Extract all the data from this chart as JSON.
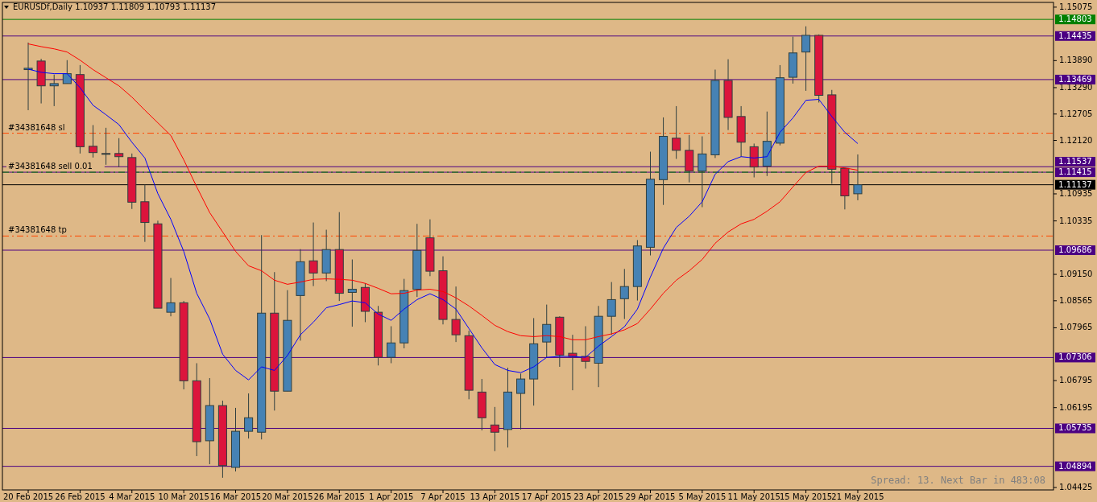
{
  "chart_data": {
    "type": "candlestick",
    "title": "EURUSDf,Daily 1.10937 1.11809 1.10793 1.11137",
    "categories": [
      "20 Feb 2015",
      null,
      null,
      null,
      "26 Feb 2015",
      null,
      null,
      null,
      "4 Mar 2015",
      null,
      null,
      null,
      "10 Mar 2015",
      null,
      null,
      null,
      "16 Mar 2015",
      null,
      null,
      null,
      "20 Mar 2015",
      null,
      null,
      null,
      "26 Mar 2015",
      null,
      null,
      null,
      "1 Apr 2015",
      null,
      null,
      null,
      "7 Apr 2015",
      null,
      null,
      null,
      "13 Apr 2015",
      null,
      null,
      null,
      "17 Apr 2015",
      null,
      null,
      null,
      "23 Apr 2015",
      null,
      null,
      null,
      "29 Apr 2015",
      null,
      null,
      null,
      "5 May 2015",
      null,
      null,
      null,
      "11 May 2015",
      null,
      null,
      null,
      "15 May 2015",
      null,
      null,
      null,
      "21 May 2015"
    ],
    "ohlc": [
      [
        1.1369,
        1.1429,
        1.1279,
        1.1372
      ],
      [
        1.1388,
        1.1393,
        1.1294,
        1.1333
      ],
      [
        1.1333,
        1.1358,
        1.1288,
        1.1338
      ],
      [
        1.1338,
        1.139,
        1.1338,
        1.136
      ],
      [
        1.1358,
        1.1379,
        1.1183,
        1.1198
      ],
      [
        1.1199,
        1.1246,
        1.1174,
        1.1185
      ],
      [
        1.1183,
        1.124,
        1.1158,
        1.1182
      ],
      [
        1.1183,
        1.1217,
        1.1153,
        1.1176
      ],
      [
        1.1174,
        1.1183,
        1.106,
        1.1075
      ],
      [
        1.1076,
        1.1114,
        1.0987,
        1.103
      ],
      [
        1.1027,
        1.1034,
        1.084,
        1.084
      ],
      [
        1.0831,
        1.0907,
        1.0822,
        1.0852
      ],
      [
        1.0852,
        1.0856,
        1.066,
        1.0679
      ],
      [
        1.0679,
        1.0718,
        1.0512,
        1.0544
      ],
      [
        1.0546,
        1.0685,
        1.0494,
        1.0624
      ],
      [
        1.0624,
        1.0635,
        1.0464,
        1.0491
      ],
      [
        1.0487,
        1.0619,
        1.0478,
        1.0567
      ],
      [
        1.0567,
        1.0651,
        1.0551,
        1.0597
      ],
      [
        1.0565,
        1.1002,
        1.0549,
        1.0829
      ],
      [
        1.0829,
        1.092,
        1.0613,
        1.0656
      ],
      [
        1.0656,
        1.088,
        1.0656,
        1.0813
      ],
      [
        1.0868,
        1.0971,
        1.0768,
        1.0943
      ],
      [
        1.0945,
        1.103,
        1.0889,
        1.0918
      ],
      [
        1.0918,
        1.1014,
        1.09,
        1.097
      ],
      [
        1.097,
        1.1053,
        1.0856,
        1.0873
      ],
      [
        1.0875,
        1.0948,
        1.0799,
        1.0882
      ],
      [
        1.0886,
        1.0895,
        1.0809,
        1.0833
      ],
      [
        1.0831,
        1.0845,
        1.0713,
        1.0731
      ],
      [
        1.0731,
        1.08,
        1.0718,
        1.0763
      ],
      [
        1.0763,
        1.0905,
        1.0751,
        1.0879
      ],
      [
        1.0882,
        1.1027,
        1.0865,
        1.0968
      ],
      [
        1.0996,
        1.1037,
        1.0911,
        1.0922
      ],
      [
        1.0923,
        1.0955,
        1.0804,
        1.0815
      ],
      [
        1.0815,
        1.0888,
        1.0765,
        1.0781
      ],
      [
        1.0779,
        1.079,
        1.0638,
        1.0658
      ],
      [
        1.0654,
        1.0683,
        1.0569,
        1.0597
      ],
      [
        1.0581,
        1.0621,
        1.0523,
        1.0565
      ],
      [
        1.0571,
        1.0708,
        1.0531,
        1.0654
      ],
      [
        1.0651,
        1.0695,
        1.0571,
        1.0683
      ],
      [
        1.0683,
        1.0818,
        1.0624,
        1.0761
      ],
      [
        1.0765,
        1.0848,
        1.0731,
        1.0804
      ],
      [
        1.082,
        1.0822,
        1.071,
        1.0736
      ],
      [
        1.074,
        1.0781,
        1.0658,
        1.0733
      ],
      [
        1.0733,
        1.08,
        1.0706,
        1.0722
      ],
      [
        1.0718,
        1.0845,
        1.0665,
        1.0822
      ],
      [
        1.0822,
        1.0898,
        1.0781,
        1.0859
      ],
      [
        1.0861,
        1.0927,
        1.0816,
        1.0888
      ],
      [
        1.0888,
        1.0991,
        1.0857,
        1.0978
      ],
      [
        1.0975,
        1.1187,
        1.0957,
        1.1126
      ],
      [
        1.1125,
        1.1263,
        1.1069,
        1.1221
      ],
      [
        1.1217,
        1.1288,
        1.1171,
        1.119
      ],
      [
        1.119,
        1.1224,
        1.1119,
        1.1144
      ],
      [
        1.1144,
        1.1221,
        1.1064,
        1.1182
      ],
      [
        1.118,
        1.1369,
        1.1173,
        1.1345
      ],
      [
        1.1345,
        1.1392,
        1.1235,
        1.1263
      ],
      [
        1.1265,
        1.1288,
        1.1176,
        1.1208
      ],
      [
        1.1198,
        1.1205,
        1.113,
        1.1153
      ],
      [
        1.1155,
        1.1276,
        1.1133,
        1.121
      ],
      [
        1.1206,
        1.1379,
        1.1201,
        1.1351
      ],
      [
        1.1352,
        1.1442,
        1.1338,
        1.1406
      ],
      [
        1.1408,
        1.1465,
        1.1322,
        1.1445
      ],
      [
        1.1445,
        1.1447,
        1.1296,
        1.1312
      ],
      [
        1.1313,
        1.1324,
        1.1116,
        1.1148
      ],
      [
        1.115,
        1.1151,
        1.1059,
        1.1089
      ],
      [
        1.10937,
        1.11809,
        1.10793,
        1.11137
      ]
    ],
    "series": [
      {
        "type": "line",
        "color": "#0000ff",
        "values": [
          1.137,
          1.1363,
          1.136,
          1.136,
          1.1329,
          1.129,
          1.1269,
          1.1247,
          1.1208,
          1.1173,
          1.1094,
          1.1037,
          1.0966,
          1.0873,
          1.0816,
          1.0738,
          1.0702,
          1.0681,
          1.071,
          1.0702,
          1.0735,
          1.0781,
          1.0809,
          1.0841,
          1.0848,
          1.0856,
          1.0852,
          1.0827,
          1.0813,
          1.0838,
          1.0859,
          1.0872,
          1.0859,
          1.0838,
          1.0795,
          1.0752,
          1.0715,
          1.0702,
          1.0697,
          1.071,
          1.0731,
          1.0733,
          1.0733,
          1.0731,
          1.0756,
          1.0777,
          1.0799,
          1.0838,
          1.0909,
          1.0973,
          1.1019,
          1.1044,
          1.1076,
          1.1137,
          1.1165,
          1.1176,
          1.1173,
          1.1176,
          1.123,
          1.1262,
          1.1301,
          1.1303,
          1.1265,
          1.123,
          1.1205
        ]
      },
      {
        "type": "line",
        "color": "#ff0000",
        "values": [
          1.1426,
          1.142,
          1.1415,
          1.1408,
          1.139,
          1.1369,
          1.1351,
          1.1333,
          1.1308,
          1.1279,
          1.1251,
          1.1223,
          1.1169,
          1.1109,
          1.1052,
          1.1009,
          1.0966,
          1.0934,
          1.0923,
          1.0902,
          1.0893,
          1.0898,
          1.0904,
          1.0905,
          1.0904,
          1.0902,
          1.0895,
          1.0884,
          1.0872,
          1.0873,
          1.088,
          1.0882,
          1.0877,
          1.0863,
          1.0845,
          1.0824,
          1.0802,
          1.0788,
          1.0779,
          1.0777,
          1.0779,
          1.0777,
          1.077,
          1.077,
          1.0777,
          1.0783,
          1.0792,
          1.0806,
          1.0838,
          1.0873,
          1.0902,
          1.0923,
          1.0948,
          1.0984,
          1.1009,
          1.1027,
          1.1037,
          1.1055,
          1.1076,
          1.1109,
          1.1141,
          1.1155,
          1.1155,
          1.1151,
          1.1146
        ]
      }
    ],
    "ylim": [
      1.0437,
      1.1518
    ],
    "yticks": [
      {
        "value": 1.15075,
        "label": "1.15075"
      },
      {
        "value": 1.1389,
        "label": "1.13890"
      },
      {
        "value": 1.1329,
        "label": "1.13290"
      },
      {
        "value": 1.12705,
        "label": "1.12705"
      },
      {
        "value": 1.1212,
        "label": "1.12120"
      },
      {
        "value": 1.10935,
        "label": "1.10935"
      },
      {
        "value": 1.10335,
        "label": "1.10335"
      },
      {
        "value": 1.0915,
        "label": "1.09150"
      },
      {
        "value": 1.08565,
        "label": "1.08565"
      },
      {
        "value": 1.07965,
        "label": "1.07965"
      },
      {
        "value": 1.06795,
        "label": "1.06795"
      },
      {
        "value": 1.06195,
        "label": "1.06195"
      },
      {
        "value": 1.04425,
        "label": "1.04425"
      }
    ],
    "ref_lines": [
      {
        "axis": "y",
        "value": 1.14803,
        "label": "1.14803",
        "color": "#008000",
        "line_style": "solid"
      },
      {
        "axis": "y",
        "value": 1.14435,
        "label": "1.14435",
        "color": "#4b0082",
        "line_style": "solid"
      },
      {
        "axis": "y",
        "value": 1.13469,
        "label": "1.13469",
        "color": "#4b0082",
        "line_style": "solid"
      },
      {
        "axis": "y",
        "value": 1.1228,
        "label": "#34381648 sl",
        "color": "#ff4500",
        "line_style": "dashed"
      },
      {
        "axis": "y",
        "value": 1.11537,
        "label": "1.11537",
        "color": "#4b0082",
        "line_style": "solid"
      },
      {
        "axis": "y",
        "value": 1.11415,
        "label": "1.11415",
        "color": "#4b0082",
        "line_style": "solid"
      },
      {
        "axis": "y",
        "value": 1.11415,
        "label": "#34381648 sell 0.01",
        "color": "#008000",
        "line_style": "dashed"
      },
      {
        "axis": "y",
        "value": 1.11137,
        "label": "1.11137",
        "color": "#000000",
        "line_style": "solid"
      },
      {
        "axis": "y",
        "value": 1.1,
        "label": "#34381648 tp",
        "color": "#ff4500",
        "line_style": "dashed"
      },
      {
        "axis": "y",
        "value": 1.09686,
        "label": "1.09686",
        "color": "#4b0082",
        "line_style": "solid"
      },
      {
        "axis": "y",
        "value": 1.07306,
        "label": "1.07306",
        "color": "#4b0082",
        "line_style": "solid"
      },
      {
        "axis": "y",
        "value": 1.05735,
        "label": "1.05735",
        "color": "#4b0082",
        "line_style": "solid"
      },
      {
        "axis": "y",
        "value": 1.04894,
        "label": "1.04894",
        "color": "#4b0082",
        "line_style": "solid"
      }
    ],
    "annotations": [
      "Spread: 13. Next Bar in 483:08"
    ]
  }
}
